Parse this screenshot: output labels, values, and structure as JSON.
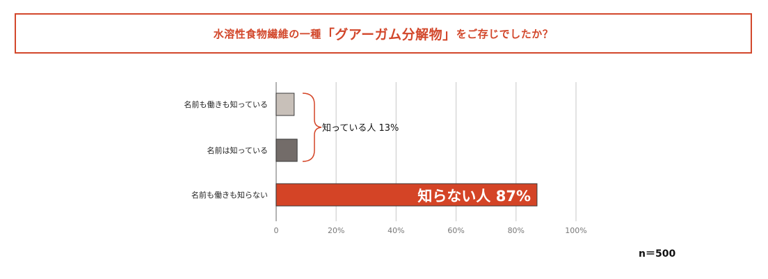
{
  "title": {
    "prefix": "水溶性食物繊維の一種",
    "emphasis": "「グアーガム分解物」",
    "suffix": "をご存じでしたか？"
  },
  "chart_data": {
    "type": "bar",
    "orientation": "horizontal",
    "categories": [
      "名前も働きも知っている",
      "名前は知っている",
      "名前も働きも知らない"
    ],
    "values": [
      6,
      7,
      87
    ],
    "colors": [
      "#c8c0b9",
      "#736c69",
      "#d44426"
    ],
    "xlim": [
      0,
      100
    ],
    "xticks": [
      "0",
      "20%",
      "40%",
      "60%",
      "80%",
      "100%"
    ],
    "grid": true,
    "annotations": {
      "known_group": "知っている人 13%",
      "unknown_bar": "知らない人 87%"
    }
  },
  "sample_size": "n＝500"
}
